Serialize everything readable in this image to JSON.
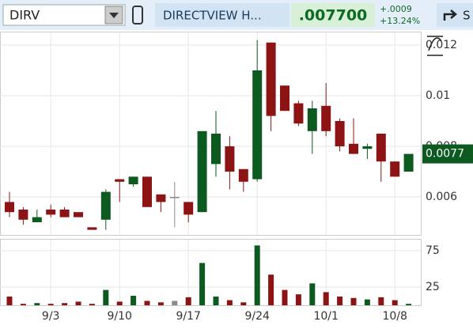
{
  "header": {
    "symbol": "DIRV",
    "company": "DIRECTVIEW H...",
    "last": ".007700",
    "change": "+.0009",
    "change_pct": "+13.24%",
    "share": "S"
  },
  "chart_data": {
    "type": "candlestick",
    "categories": [
      null,
      null,
      null,
      "9/3",
      null,
      null,
      null,
      null,
      "9/10",
      null,
      null,
      null,
      null,
      "9/17",
      null,
      null,
      null,
      null,
      "9/24",
      null,
      null,
      null,
      null,
      "10/1",
      null,
      null,
      null,
      null,
      "10/8",
      null
    ],
    "open": [
      0.0058,
      0.0055,
      0.005,
      0.0055,
      0.0055,
      0.0054,
      0.0048,
      0.0051,
      0.0067,
      0.0065,
      0.0068,
      0.0061,
      0.006,
      0.0058,
      0.0054,
      0.0073,
      0.008,
      0.0071,
      0.0067,
      0.0121,
      0.0104,
      0.0097,
      0.0086,
      0.0096,
      0.009,
      0.0081,
      0.0079,
      0.0085,
      0.0074,
      0.007
    ],
    "high": [
      0.0062,
      0.0056,
      0.0055,
      0.0057,
      0.0056,
      0.0054,
      0.0048,
      0.0063,
      0.0067,
      0.0068,
      0.0068,
      0.0061,
      0.0066,
      0.0058,
      0.0086,
      0.0094,
      0.0084,
      0.0071,
      0.0122,
      0.0121,
      0.0104,
      0.0098,
      0.0098,
      0.0105,
      0.0091,
      0.0091,
      0.0081,
      0.0085,
      0.0074,
      0.0077
    ],
    "low": [
      0.0052,
      0.0049,
      0.005,
      0.0052,
      0.0052,
      0.0052,
      0.0047,
      0.0047,
      0.0058,
      0.0064,
      0.0056,
      0.0054,
      0.0048,
      0.005,
      0.0054,
      0.0068,
      0.0063,
      0.0062,
      0.0066,
      0.0086,
      0.0094,
      0.0088,
      0.0077,
      0.0084,
      0.0078,
      0.0077,
      0.0075,
      0.0066,
      0.0068,
      0.007
    ],
    "close": [
      0.0054,
      0.0051,
      0.0052,
      0.0053,
      0.0052,
      0.0052,
      0.0047,
      0.0062,
      0.0066,
      0.0068,
      0.0056,
      0.0058,
      0.006,
      0.0053,
      0.0086,
      0.0085,
      0.007,
      0.0066,
      0.011,
      0.0092,
      0.0094,
      0.0089,
      0.0095,
      0.0086,
      0.008,
      0.0077,
      0.008,
      0.0074,
      0.0068,
      0.0077
    ],
    "volume": [
      12,
      2,
      3,
      2,
      3,
      5,
      2,
      21,
      5,
      13,
      6,
      4,
      6,
      11,
      58,
      12,
      7,
      4,
      82,
      42,
      21,
      15,
      30,
      18,
      12,
      10,
      8,
      11,
      7,
      2
    ],
    "ylim": [
      0.0045,
      0.0125
    ],
    "yticks": [
      0.006,
      0.008,
      0.01,
      0.012
    ],
    "volume_ylim": [
      0,
      90
    ],
    "volume_yticks": [
      25,
      75
    ],
    "last_price": 0.0077,
    "up_color": "#0d5a20",
    "down_color": "#8c1414",
    "flat_color": "#8a8a8a",
    "grid": true
  }
}
